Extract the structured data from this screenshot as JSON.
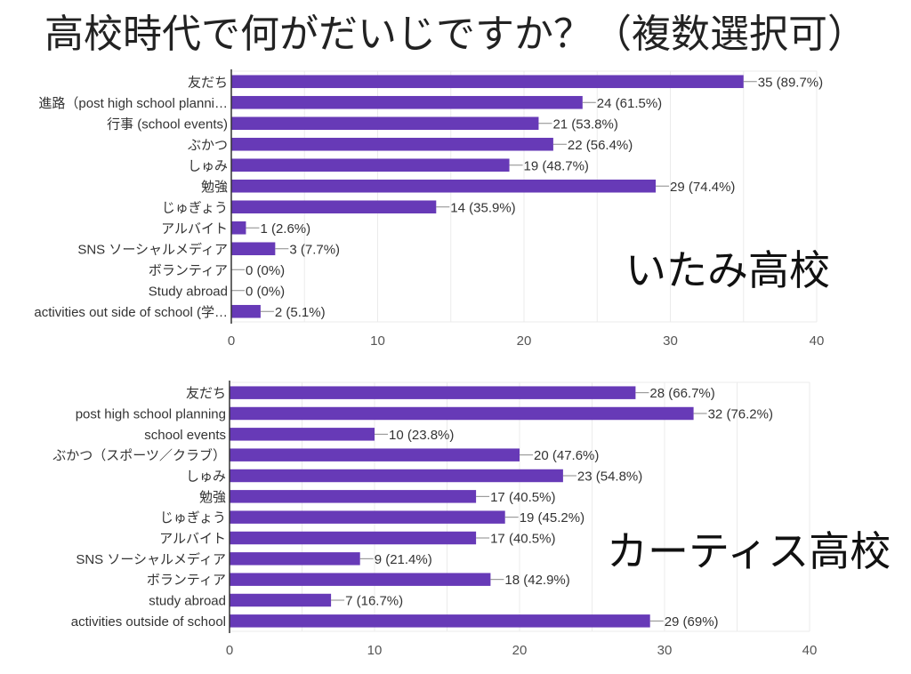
{
  "title": "高校時代で何がだいじですか？（複数選択可）",
  "colors": {
    "bar": "#673ab7",
    "axis": "#333333",
    "grid": "#ebebeb",
    "leader": "#888888"
  },
  "chart_data": [
    {
      "type": "bar",
      "orientation": "horizontal",
      "title": "いたみ高校",
      "xlabel": "",
      "ylabel": "",
      "xlim": [
        0,
        40
      ],
      "ticks": [
        0,
        10,
        20,
        30,
        40
      ],
      "grid": true,
      "categories": [
        "友だち",
        "進路（post high school planni…",
        "行事 (school events)",
        "ぶかつ",
        "しゅみ",
        "勉強",
        "じゅぎょう",
        "アルバイト",
        "SNS ソーシャルメディア",
        "ボランティア",
        "Study abroad",
        "activities out side of school (学…"
      ],
      "values": [
        35,
        24,
        21,
        22,
        19,
        29,
        14,
        1,
        3,
        0,
        0,
        2
      ],
      "value_labels": [
        "35 (89.7%)",
        "24 (61.5%)",
        "21 (53.8%)",
        "22 (56.4%)",
        "19 (48.7%)",
        "29 (74.4%)",
        "14 (35.9%)",
        "1 (2.6%)",
        "3 (7.7%)",
        "0 (0%)",
        "0 (0%)",
        "2 (5.1%)"
      ]
    },
    {
      "type": "bar",
      "orientation": "horizontal",
      "title": "カーティス高校",
      "xlabel": "",
      "ylabel": "",
      "xlim": [
        0,
        40
      ],
      "ticks": [
        0,
        10,
        20,
        30,
        40
      ],
      "grid": true,
      "categories": [
        "友だち",
        "post high school planning",
        "school events",
        "ぶかつ（スポーツ／クラブ）",
        "しゅみ",
        "勉強",
        "じゅぎょう",
        "アルバイト",
        "SNS ソーシャルメディア",
        "ボランティア",
        "study abroad",
        "activities outside of school"
      ],
      "values": [
        28,
        32,
        10,
        20,
        23,
        17,
        19,
        17,
        9,
        18,
        7,
        29
      ],
      "value_labels": [
        "28 (66.7%)",
        "32 (76.2%)",
        "10 (23.8%)",
        "20 (47.6%)",
        "23 (54.8%)",
        "17 (40.5%)",
        "19 (45.2%)",
        "17 (40.5%)",
        "9 (21.4%)",
        "18 (42.9%)",
        "7 (16.7%)",
        "29 (69%)"
      ]
    }
  ]
}
